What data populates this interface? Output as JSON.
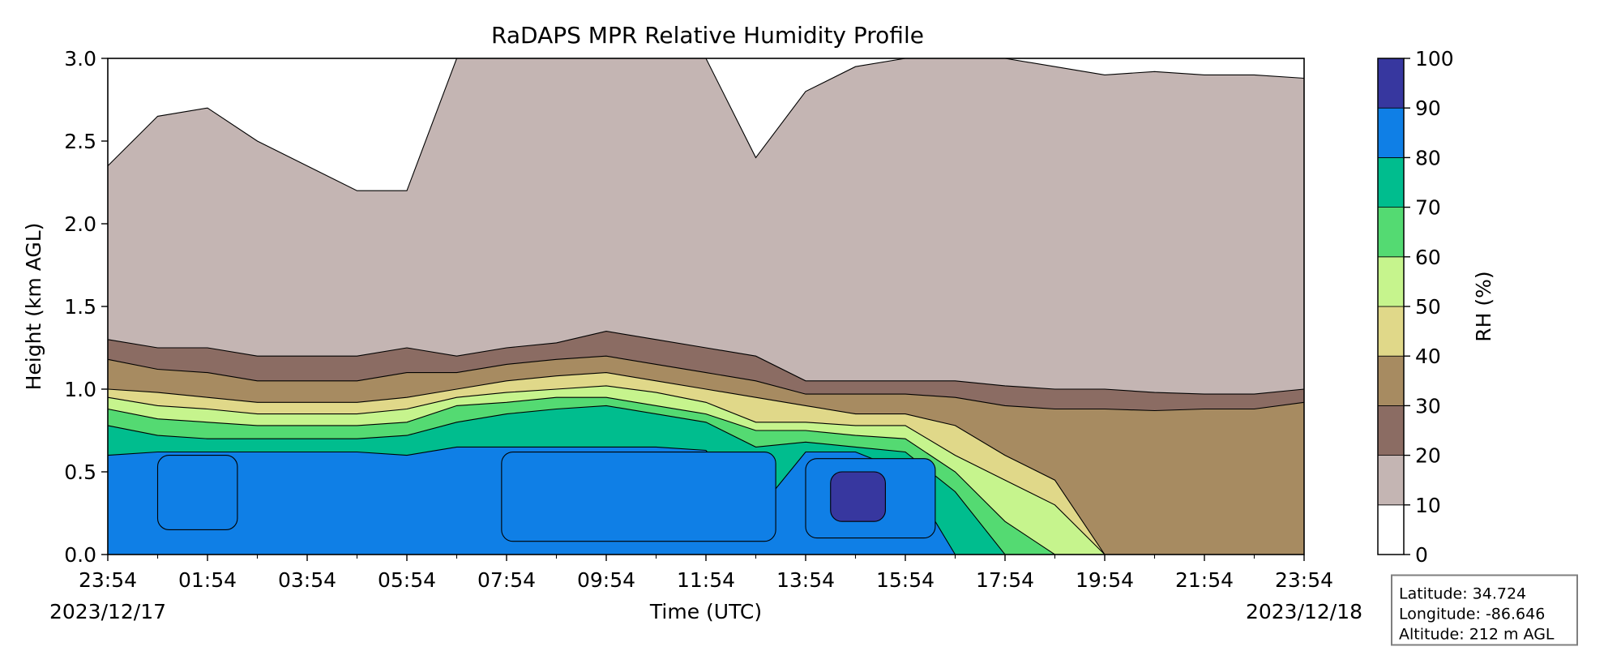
{
  "chart_data": {
    "type": "heatmap",
    "title": "RaDAPS MPR Relative Humidity Profile",
    "xlabel": "Time (UTC)",
    "ylabel": "Height (km AGL)",
    "x_tick_labels": [
      "23:54",
      "01:54",
      "03:54",
      "05:54",
      "07:54",
      "09:54",
      "11:54",
      "13:54",
      "15:54",
      "17:54",
      "19:54",
      "21:54",
      "23:54"
    ],
    "start_date": "2023/12/17",
    "end_date": "2023/12/18",
    "ylim": [
      0,
      3.0
    ],
    "y_ticks": [
      "0.0",
      "0.5",
      "1.0",
      "1.5",
      "2.0",
      "2.5",
      "3.0"
    ],
    "colorbar": {
      "label": "RH (%)",
      "range": [
        0,
        100
      ],
      "ticks": [
        "0",
        "10",
        "20",
        "30",
        "40",
        "50",
        "60",
        "70",
        "80",
        "90",
        "100"
      ],
      "levels": [
        {
          "range": [
            0,
            10
          ],
          "color": "#ffffff"
        },
        {
          "range": [
            10,
            20
          ],
          "color": "#c4b5b3"
        },
        {
          "range": [
            20,
            30
          ],
          "color": "#8b6c63"
        },
        {
          "range": [
            30,
            40
          ],
          "color": "#a78b61"
        },
        {
          "range": [
            40,
            50
          ],
          "color": "#e0d889"
        },
        {
          "range": [
            50,
            60
          ],
          "color": "#c6f48d"
        },
        {
          "range": [
            60,
            70
          ],
          "color": "#54da72"
        },
        {
          "range": [
            70,
            80
          ],
          "color": "#00bd8e"
        },
        {
          "range": [
            80,
            90
          ],
          "color": "#0f7fe6"
        },
        {
          "range": [
            90,
            100
          ],
          "color": "#37379f"
        }
      ]
    },
    "contour_boundaries_km": {
      "time_hours": [
        0,
        1,
        2,
        3,
        4,
        5,
        6,
        7,
        8,
        9,
        10,
        11,
        12,
        13,
        14,
        15,
        16,
        17,
        18,
        19,
        20,
        21,
        22,
        23,
        24
      ],
      "rh_10": [
        2.35,
        2.65,
        2.7,
        2.5,
        2.35,
        2.2,
        2.2,
        3.0,
        3.0,
        3.0,
        3.0,
        3.0,
        3.0,
        2.4,
        2.8,
        2.95,
        3.0,
        3.0,
        3.0,
        2.95,
        2.9,
        2.92,
        2.9,
        2.9,
        2.88
      ],
      "rh_20": [
        1.3,
        1.25,
        1.25,
        1.2,
        1.2,
        1.2,
        1.25,
        1.2,
        1.25,
        1.28,
        1.35,
        1.3,
        1.25,
        1.2,
        1.05,
        1.05,
        1.05,
        1.05,
        1.02,
        1.0,
        1.0,
        0.98,
        0.97,
        0.97,
        1.0
      ],
      "rh_30": [
        1.18,
        1.12,
        1.1,
        1.05,
        1.05,
        1.05,
        1.1,
        1.1,
        1.15,
        1.18,
        1.2,
        1.15,
        1.1,
        1.05,
        0.97,
        0.97,
        0.97,
        0.95,
        0.9,
        0.88,
        0.88,
        0.87,
        0.88,
        0.88,
        0.92
      ],
      "rh_40": [
        1.0,
        0.98,
        0.95,
        0.92,
        0.92,
        0.92,
        0.95,
        1.0,
        1.05,
        1.08,
        1.1,
        1.05,
        1.0,
        0.95,
        0.9,
        0.85,
        0.85,
        0.78,
        0.6,
        0.45,
        0.0,
        0.0,
        0.0,
        0.0,
        0.0
      ],
      "rh_50": [
        0.95,
        0.9,
        0.88,
        0.85,
        0.85,
        0.85,
        0.88,
        0.95,
        0.98,
        1.0,
        1.02,
        0.98,
        0.92,
        0.8,
        0.8,
        0.78,
        0.78,
        0.6,
        0.45,
        0.3,
        0.0,
        0.0,
        0.0,
        0.0,
        0.0
      ],
      "rh_60": [
        0.88,
        0.82,
        0.8,
        0.78,
        0.78,
        0.78,
        0.8,
        0.9,
        0.92,
        0.95,
        0.95,
        0.9,
        0.85,
        0.75,
        0.75,
        0.72,
        0.7,
        0.5,
        0.2,
        0.0,
        0.0,
        0.0,
        0.0,
        0.0,
        0.0
      ],
      "rh_70": [
        0.78,
        0.72,
        0.7,
        0.7,
        0.7,
        0.7,
        0.72,
        0.8,
        0.85,
        0.88,
        0.9,
        0.85,
        0.8,
        0.65,
        0.68,
        0.65,
        0.62,
        0.38,
        0.0,
        0.0,
        0.0,
        0.0,
        0.0,
        0.0,
        0.0
      ],
      "rh_80": [
        0.6,
        0.62,
        0.62,
        0.62,
        0.62,
        0.62,
        0.6,
        0.65,
        0.65,
        0.65,
        0.65,
        0.65,
        0.63,
        0.25,
        0.62,
        0.62,
        0.5,
        0.0,
        0.0,
        0.0,
        0.0,
        0.0,
        0.0,
        0.0,
        0.0
      ]
    }
  },
  "info_box": {
    "latitude": "Latitude: 34.724",
    "longitude": "Longitude: -86.646",
    "altitude": "Altitude: 212 m AGL"
  }
}
